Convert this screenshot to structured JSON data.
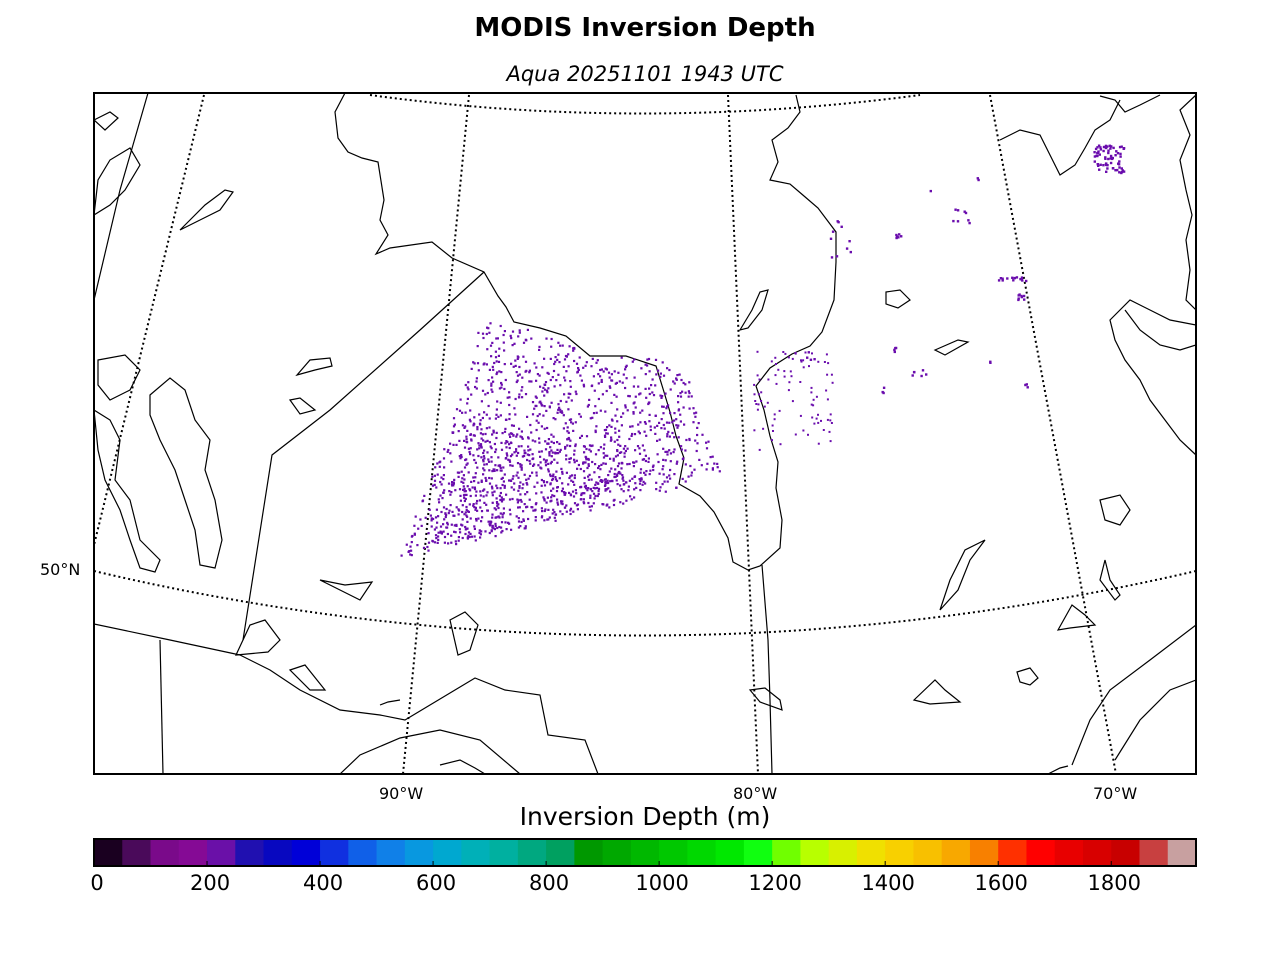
{
  "title": "MODIS Inversion Depth",
  "subtitle": "Aqua 20251101 1943 UTC",
  "map": {
    "region": "Hudson Bay / Ontario / Quebec",
    "latitude_labels": [
      {
        "text": "50°N",
        "value": 50
      }
    ],
    "longitude_labels": [
      {
        "text": "90°W",
        "value": -90
      },
      {
        "text": "80°W",
        "value": -80
      },
      {
        "text": "70°W",
        "value": -70
      }
    ],
    "data_color": "#6a0dad",
    "data_description_series": "Inversion depth pixels"
  },
  "colorbar": {
    "title": "Inversion Depth (m)",
    "min": 0,
    "max": 1950,
    "step": 50,
    "tick_labels": [
      "0",
      "200",
      "400",
      "600",
      "800",
      "1000",
      "1200",
      "1400",
      "1600",
      "1800"
    ],
    "tick_values": [
      0,
      200,
      400,
      600,
      800,
      1000,
      1200,
      1400,
      1600,
      1800
    ],
    "colors": [
      "#1a0020",
      "#4a0a5a",
      "#7a0a8a",
      "#850a95",
      "#6a10a8",
      "#2010b0",
      "#0808c0",
      "#0000d8",
      "#1030e0",
      "#1060e8",
      "#1080e8",
      "#0898e0",
      "#00a8d0",
      "#00b0b8",
      "#00b0a0",
      "#00a880",
      "#00a060",
      "#009800",
      "#00a800",
      "#00b800",
      "#00c800",
      "#00d800",
      "#00e800",
      "#10ff10",
      "#70ff00",
      "#b8ff00",
      "#d8f000",
      "#f0e000",
      "#f8d000",
      "#f8c000",
      "#f8a800",
      "#f88000",
      "#ff3000",
      "#ff0000",
      "#e80000",
      "#d80000",
      "#c80000",
      "#c84040",
      "#c8a0a0"
    ]
  }
}
